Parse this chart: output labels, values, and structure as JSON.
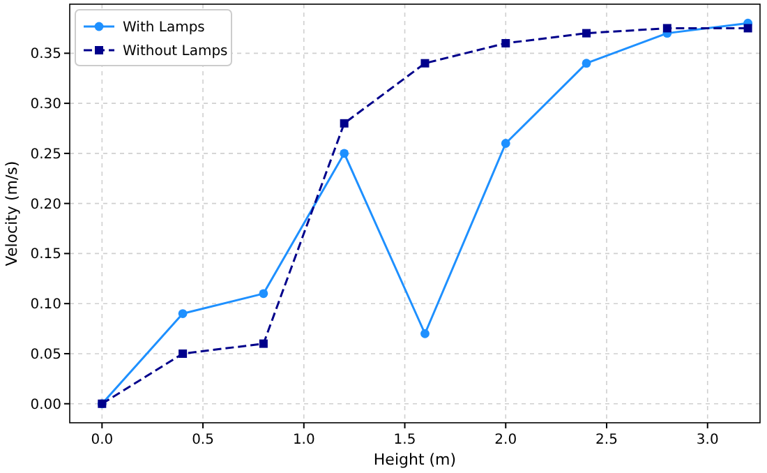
{
  "chart_data": {
    "type": "line",
    "xlabel": "Height (m)",
    "ylabel": "Velocity (m/s)",
    "x": [
      0,
      0.4,
      0.8,
      1.2,
      1.6,
      2.0,
      2.4,
      2.8,
      3.2
    ],
    "series": [
      {
        "name": "With Lamps",
        "color": "#1e90ff",
        "marker": "circle",
        "line_style": "solid",
        "values": [
          0,
          0.09,
          0.11,
          0.25,
          0.07,
          0.26,
          0.34,
          0.37,
          0.38
        ]
      },
      {
        "name": "Without Lamps",
        "color": "#00008b",
        "marker": "square",
        "line_style": "dashed",
        "values": [
          0,
          0.05,
          0.06,
          0.28,
          0.34,
          0.36,
          0.37,
          0.375,
          0.375
        ]
      }
    ],
    "xlim": [
      -0.16,
      3.26
    ],
    "xticks": [
      {
        "value": 0,
        "label": "0.0"
      },
      {
        "value": 0.5,
        "label": "0.5"
      },
      {
        "value": 1,
        "label": "1.0"
      },
      {
        "value": 1.5,
        "label": "1.5"
      },
      {
        "value": 2,
        "label": "2.0"
      },
      {
        "value": 2.5,
        "label": "2.5"
      },
      {
        "value": 3,
        "label": "3.0"
      }
    ],
    "ylim": [
      -0.019,
      0.399
    ],
    "yticks": [
      {
        "value": 0,
        "label": "0.00"
      },
      {
        "value": 0.05,
        "label": "0.05"
      },
      {
        "value": 0.1,
        "label": "0.10"
      },
      {
        "value": 0.15,
        "label": "0.15"
      },
      {
        "value": 0.2,
        "label": "0.20"
      },
      {
        "value": 0.25,
        "label": "0.25"
      },
      {
        "value": 0.3,
        "label": "0.30"
      },
      {
        "value": 0.35,
        "label": "0.35"
      }
    ],
    "grid": true,
    "legend": "top left"
  }
}
